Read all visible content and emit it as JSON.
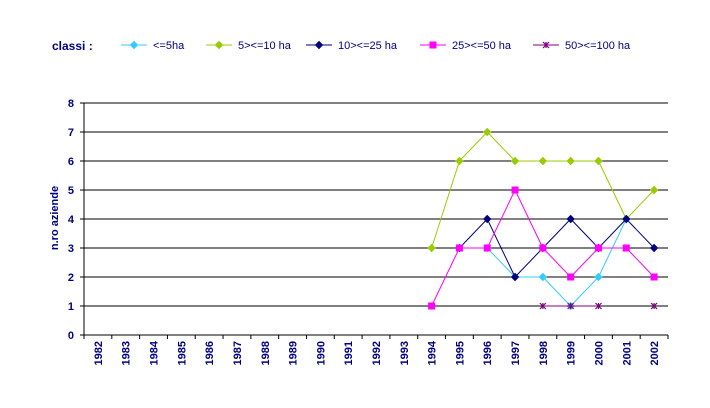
{
  "chart_data": {
    "type": "line",
    "legend_title": "classi :",
    "legend_position": "top",
    "ylabel": "n.ro aziende",
    "ylim": [
      0,
      8
    ],
    "yticks": [
      0,
      1,
      2,
      3,
      4,
      5,
      6,
      7,
      8
    ],
    "grid": "horizontal",
    "categories": [
      "1982",
      "1983",
      "1984",
      "1985",
      "1986",
      "1987",
      "1988",
      "1989",
      "1990",
      "1991",
      "1992",
      "1993",
      "1994",
      "1995",
      "1996",
      "1997",
      "1998",
      "1999",
      "2000",
      "2001",
      "2002"
    ],
    "series": [
      {
        "name": "<=5ha",
        "color": "#33CCFF",
        "marker": "diamond",
        "values": [
          null,
          null,
          null,
          null,
          null,
          null,
          null,
          null,
          null,
          null,
          null,
          null,
          null,
          3,
          3,
          2,
          2,
          1,
          2,
          4,
          null
        ]
      },
      {
        "name": "5><=10 ha",
        "color": "#99CC00",
        "marker": "diamond",
        "values": [
          null,
          null,
          null,
          null,
          null,
          null,
          null,
          null,
          null,
          null,
          null,
          null,
          3,
          6,
          7,
          6,
          6,
          6,
          6,
          4,
          5
        ]
      },
      {
        "name": "10><=25 ha",
        "color": "#000080",
        "marker": "diamond",
        "values": [
          null,
          null,
          null,
          null,
          null,
          null,
          null,
          null,
          null,
          null,
          null,
          null,
          null,
          3,
          4,
          2,
          3,
          4,
          3,
          4,
          3
        ]
      },
      {
        "name": "25><=50 ha",
        "color": "#FF00FF",
        "marker": "square",
        "values": [
          null,
          null,
          null,
          null,
          null,
          null,
          null,
          null,
          null,
          null,
          null,
          null,
          1,
          3,
          3,
          5,
          3,
          2,
          3,
          3,
          2
        ]
      },
      {
        "name": "50><=100 ha",
        "color": "#800080",
        "marker": "star",
        "values": [
          null,
          null,
          null,
          null,
          null,
          null,
          null,
          null,
          null,
          null,
          null,
          null,
          null,
          null,
          null,
          null,
          1,
          1,
          1,
          null,
          1
        ]
      }
    ]
  }
}
